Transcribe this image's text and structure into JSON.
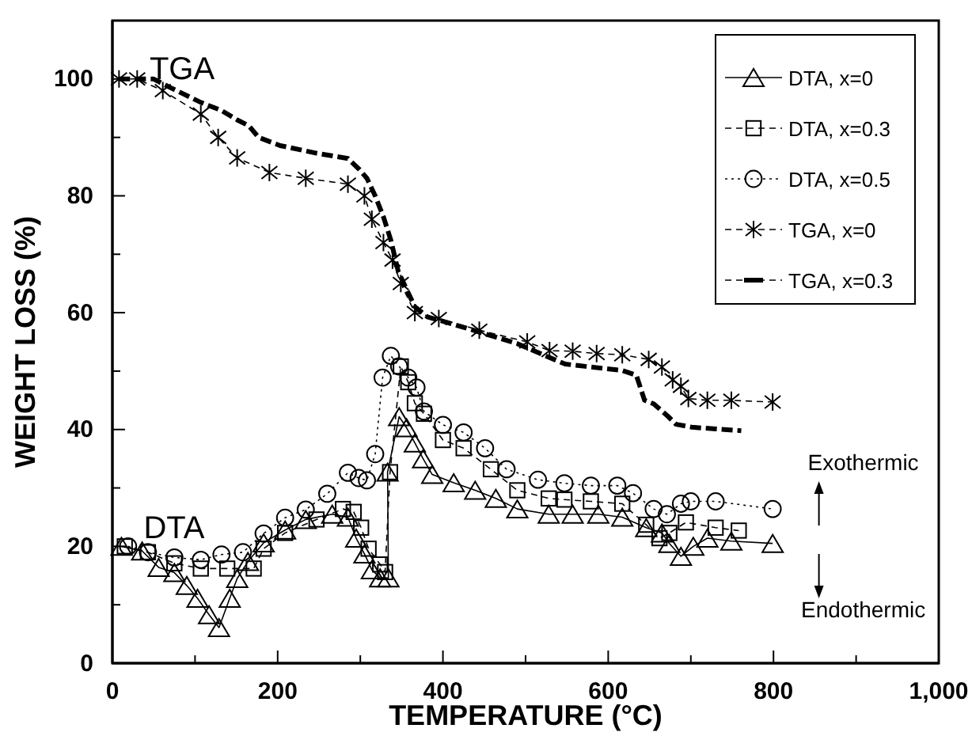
{
  "chart_data": {
    "type": "line",
    "xlabel": "TEMPERATURE (°C)",
    "ylabel": "WEIGHT LOSS (%)",
    "xlim": [
      0,
      1000
    ],
    "ylim": [
      0,
      110
    ],
    "xticks": [
      0,
      {
        "value": 100,
        "label": null
      },
      200,
      {
        "value": 300,
        "label": null
      },
      400,
      {
        "value": 500,
        "label": null
      },
      600,
      {
        "value": 700,
        "label": null
      },
      800,
      {
        "value": 900,
        "label": null
      },
      {
        "value": 1000,
        "label": "1,000"
      }
    ],
    "yticks": [
      0,
      {
        "value": 10,
        "label": null
      },
      20,
      {
        "value": 30,
        "label": null
      },
      40,
      {
        "value": 50,
        "label": null
      },
      60,
      {
        "value": 70,
        "label": null
      },
      80,
      {
        "value": 90,
        "label": null
      },
      100
    ],
    "grid": false,
    "legend": "top right",
    "annotations": [
      "TGA",
      "DTA",
      "Exothermic",
      "Endothermic"
    ],
    "series": [
      {
        "name": "DTA, x=0",
        "color": "#000000",
        "marker": "triangle",
        "line_style": "solid",
        "x": [
          11,
          36,
          56,
          75,
          90,
          103,
          117,
          129,
          142,
          151,
          164,
          183,
          209,
          234,
          266,
          285,
          295,
          305,
          314,
          324,
          334,
          333,
          347,
          356,
          366,
          376,
          387,
          413,
          439,
          464,
          490,
          528,
          557,
          588,
          617,
          646,
          665,
          674,
          688,
          703,
          720,
          749,
          799
        ],
        "values": [
          20,
          19.2,
          16.4,
          15.5,
          13.3,
          11.1,
          8.3,
          6.1,
          11.1,
          14.5,
          17.4,
          20.6,
          22.8,
          24.6,
          25.5,
          25,
          21.4,
          18.7,
          16,
          14.6,
          14.6,
          32.7,
          42.2,
          40.3,
          37.7,
          35,
          32.3,
          30.9,
          29.6,
          28.2,
          26.4,
          25.5,
          25.5,
          25.5,
          25,
          23.2,
          22.3,
          20.5,
          18.3,
          20,
          21.4,
          20.9,
          20.5
        ]
      },
      {
        "name": "DTA, x=0.3",
        "color": "#000000",
        "marker": "square",
        "line_style": "dashed",
        "x": [
          15,
          43,
          75,
          107,
          139,
          171,
          183,
          209,
          247,
          279,
          292,
          301,
          310,
          324,
          330,
          336,
          349,
          358,
          366,
          377,
          400,
          425,
          458,
          490,
          528,
          547,
          579,
          617,
          646,
          662,
          674,
          694,
          730,
          758
        ],
        "values": [
          20,
          19,
          17.1,
          16.2,
          16.2,
          16.2,
          19.6,
          22.3,
          24.6,
          26.4,
          25.9,
          23.2,
          19.6,
          16.9,
          15.6,
          32.7,
          50.8,
          48.1,
          44.5,
          42.7,
          38.2,
          36.8,
          33.2,
          29.6,
          28.2,
          28,
          27.7,
          27.3,
          23.7,
          21.4,
          22.3,
          24.1,
          23.2,
          22.7
        ]
      },
      {
        "name": "DTA, x=0.5",
        "color": "#000000",
        "marker": "circle",
        "line_style": "dotted",
        "x": [
          19,
          43,
          75,
          107,
          132,
          158,
          183,
          209,
          234,
          260,
          285,
          298,
          308,
          318,
          327,
          337,
          347,
          358,
          368,
          377,
          400,
          425,
          451,
          477,
          515,
          547,
          579,
          611,
          630,
          655,
          671,
          688,
          700,
          730,
          799
        ],
        "values": [
          20,
          19,
          18.1,
          17.7,
          18.6,
          19,
          22.2,
          24.9,
          26.3,
          29,
          32.6,
          31.7,
          31.3,
          35.8,
          48.9,
          52.6,
          50.8,
          48.9,
          47.2,
          43.1,
          40.8,
          39.5,
          36.8,
          33.2,
          31.4,
          30.8,
          30.4,
          30.4,
          29.1,
          26.4,
          25.5,
          27.3,
          27.7,
          27.7,
          26.4
        ]
      },
      {
        "name": "TGA, x=0",
        "color": "#000000",
        "marker": "cross",
        "line_style": "dashed",
        "x": [
          8,
          30,
          61,
          107,
          128,
          151,
          190,
          234,
          285,
          305,
          314,
          328,
          339,
          349,
          366,
          395,
          444,
          502,
          529,
          557,
          586,
          617,
          649,
          665,
          678,
          688,
          697,
          720,
          749,
          799
        ],
        "values": [
          100,
          100,
          98,
          94,
          90,
          86.5,
          84,
          83,
          82,
          80,
          76,
          72,
          69,
          65,
          60,
          59,
          57,
          55,
          53.5,
          53.4,
          53,
          52.8,
          52,
          50.7,
          48.5,
          47.4,
          45.3,
          45,
          45,
          44.7
        ]
      },
      {
        "name": "TGA, x=0.3",
        "color": "#000000",
        "marker": "none",
        "line_style": "dashed",
        "x": [
          8,
          30,
          50,
          69,
          107,
          132,
          151,
          165,
          177,
          203,
          247,
          285,
          299,
          308,
          318,
          328,
          337,
          346,
          356,
          366,
          381,
          425,
          490,
          521,
          548,
          579,
          617,
          634,
          644,
          655,
          672,
          682,
          701,
          730,
          761
        ],
        "values": [
          100,
          100,
          100,
          98.6,
          96,
          94.6,
          93,
          92,
          90,
          88.6,
          87.3,
          86.4,
          84.5,
          83,
          80,
          76.4,
          72.4,
          67,
          64,
          61,
          59.3,
          57.5,
          54.7,
          52.8,
          51.2,
          50.7,
          50.1,
          49.3,
          45,
          44.4,
          42.3,
          40.9,
          40.4,
          40.1,
          39.8
        ]
      }
    ]
  }
}
